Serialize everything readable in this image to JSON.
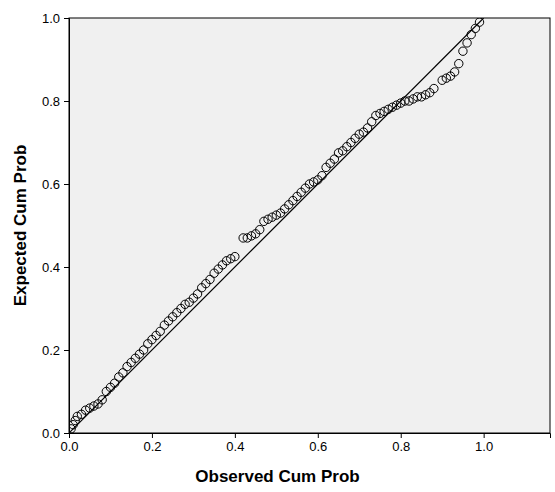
{
  "chart_data": {
    "type": "scatter",
    "x_label": "Observed Cum Prob",
    "y_label": "Expected Cum Prob",
    "xlim": [
      0,
      1.16
    ],
    "ylim": [
      0,
      1
    ],
    "xticks": [
      {
        "value": 0,
        "label": "0.0"
      },
      {
        "value": 0.2,
        "label": "0.2"
      },
      {
        "value": 0.4,
        "label": "0.4"
      },
      {
        "value": 0.6,
        "label": "0.6"
      },
      {
        "value": 0.8,
        "label": "0.8"
      },
      {
        "value": 1,
        "label": "1.0"
      }
    ],
    "yticks": [
      {
        "value": 0,
        "label": "0.0"
      },
      {
        "value": 0.2,
        "label": "0.2"
      },
      {
        "value": 0.4,
        "label": "0.4"
      },
      {
        "value": 0.6,
        "label": "0.6"
      },
      {
        "value": 0.8,
        "label": "0.8"
      },
      {
        "value": 1,
        "label": "1.0"
      }
    ],
    "grid": false,
    "series": [
      {
        "type": "scatter",
        "marker": "circle",
        "color": "#000000",
        "x": [
          0.005,
          0.01,
          0.015,
          0.02,
          0.03,
          0.04,
          0.05,
          0.06,
          0.07,
          0.08,
          0.09,
          0.1,
          0.11,
          0.12,
          0.13,
          0.14,
          0.15,
          0.16,
          0.17,
          0.18,
          0.19,
          0.2,
          0.21,
          0.22,
          0.23,
          0.24,
          0.25,
          0.26,
          0.27,
          0.28,
          0.29,
          0.3,
          0.31,
          0.32,
          0.33,
          0.34,
          0.35,
          0.36,
          0.37,
          0.38,
          0.39,
          0.4,
          0.42,
          0.43,
          0.44,
          0.45,
          0.46,
          0.47,
          0.48,
          0.49,
          0.5,
          0.51,
          0.52,
          0.53,
          0.54,
          0.55,
          0.56,
          0.57,
          0.58,
          0.59,
          0.6,
          0.61,
          0.62,
          0.63,
          0.64,
          0.65,
          0.66,
          0.67,
          0.68,
          0.69,
          0.7,
          0.71,
          0.72,
          0.73,
          0.74,
          0.75,
          0.76,
          0.77,
          0.78,
          0.79,
          0.8,
          0.81,
          0.82,
          0.83,
          0.84,
          0.85,
          0.86,
          0.87,
          0.88,
          0.9,
          0.91,
          0.92,
          0.93,
          0.94,
          0.95,
          0.96,
          0.97,
          0.98,
          0.99
        ],
        "values": [
          0.01,
          0.02,
          0.03,
          0.04,
          0.045,
          0.055,
          0.06,
          0.065,
          0.07,
          0.08,
          0.1,
          0.11,
          0.12,
          0.135,
          0.145,
          0.16,
          0.17,
          0.18,
          0.19,
          0.2,
          0.215,
          0.225,
          0.235,
          0.245,
          0.26,
          0.27,
          0.28,
          0.29,
          0.3,
          0.31,
          0.315,
          0.325,
          0.335,
          0.35,
          0.36,
          0.37,
          0.385,
          0.395,
          0.405,
          0.415,
          0.42,
          0.425,
          0.47,
          0.47,
          0.475,
          0.48,
          0.49,
          0.51,
          0.515,
          0.52,
          0.525,
          0.53,
          0.54,
          0.55,
          0.56,
          0.57,
          0.58,
          0.59,
          0.6,
          0.605,
          0.61,
          0.62,
          0.64,
          0.65,
          0.66,
          0.675,
          0.68,
          0.69,
          0.7,
          0.71,
          0.72,
          0.725,
          0.735,
          0.75,
          0.765,
          0.77,
          0.775,
          0.78,
          0.785,
          0.79,
          0.795,
          0.8,
          0.8,
          0.805,
          0.81,
          0.81,
          0.815,
          0.82,
          0.83,
          0.85,
          0.855,
          0.86,
          0.87,
          0.89,
          0.92,
          0.94,
          0.96,
          0.975,
          0.99
        ]
      },
      {
        "type": "line",
        "line_style": "solid",
        "color": "#000000",
        "x": [
          0,
          1
        ],
        "values": [
          0,
          1
        ]
      }
    ]
  }
}
